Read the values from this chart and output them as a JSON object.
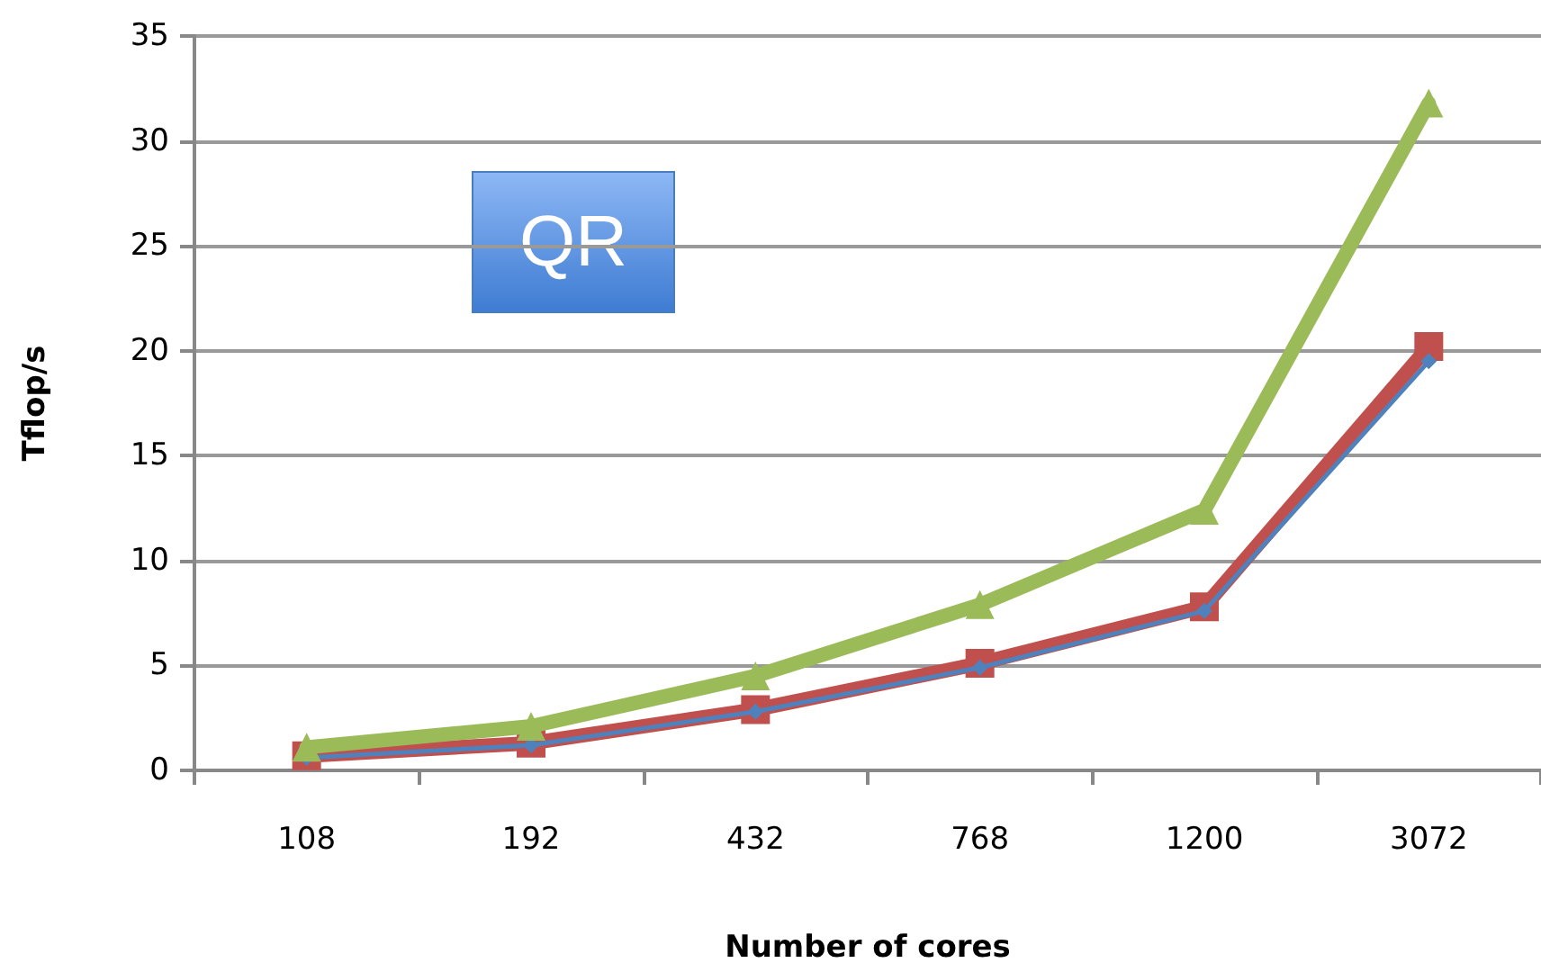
{
  "chart_data": {
    "type": "line",
    "xlabel": "Number of cores",
    "ylabel": "Tflop/s",
    "categories": [
      "108",
      "192",
      "432",
      "768",
      "1200",
      "3072"
    ],
    "series": [
      {
        "color": "#4f81bd",
        "marker": "diamond",
        "values": [
          0.6,
          1.2,
          2.8,
          4.9,
          7.6,
          19.5
        ]
      },
      {
        "color": "#c0504d",
        "marker": "square",
        "values": [
          0.7,
          1.3,
          2.9,
          5.1,
          7.8,
          20.2
        ]
      },
      {
        "color": "#9bbb59",
        "marker": "triangle",
        "values": [
          1.1,
          2.1,
          4.5,
          7.9,
          12.4,
          31.8
        ]
      }
    ],
    "ylim": [
      0,
      35
    ],
    "yticks": [
      0,
      5,
      10,
      15,
      20,
      25,
      30,
      35
    ],
    "grid": "y",
    "annotations": [
      "QR"
    ]
  }
}
